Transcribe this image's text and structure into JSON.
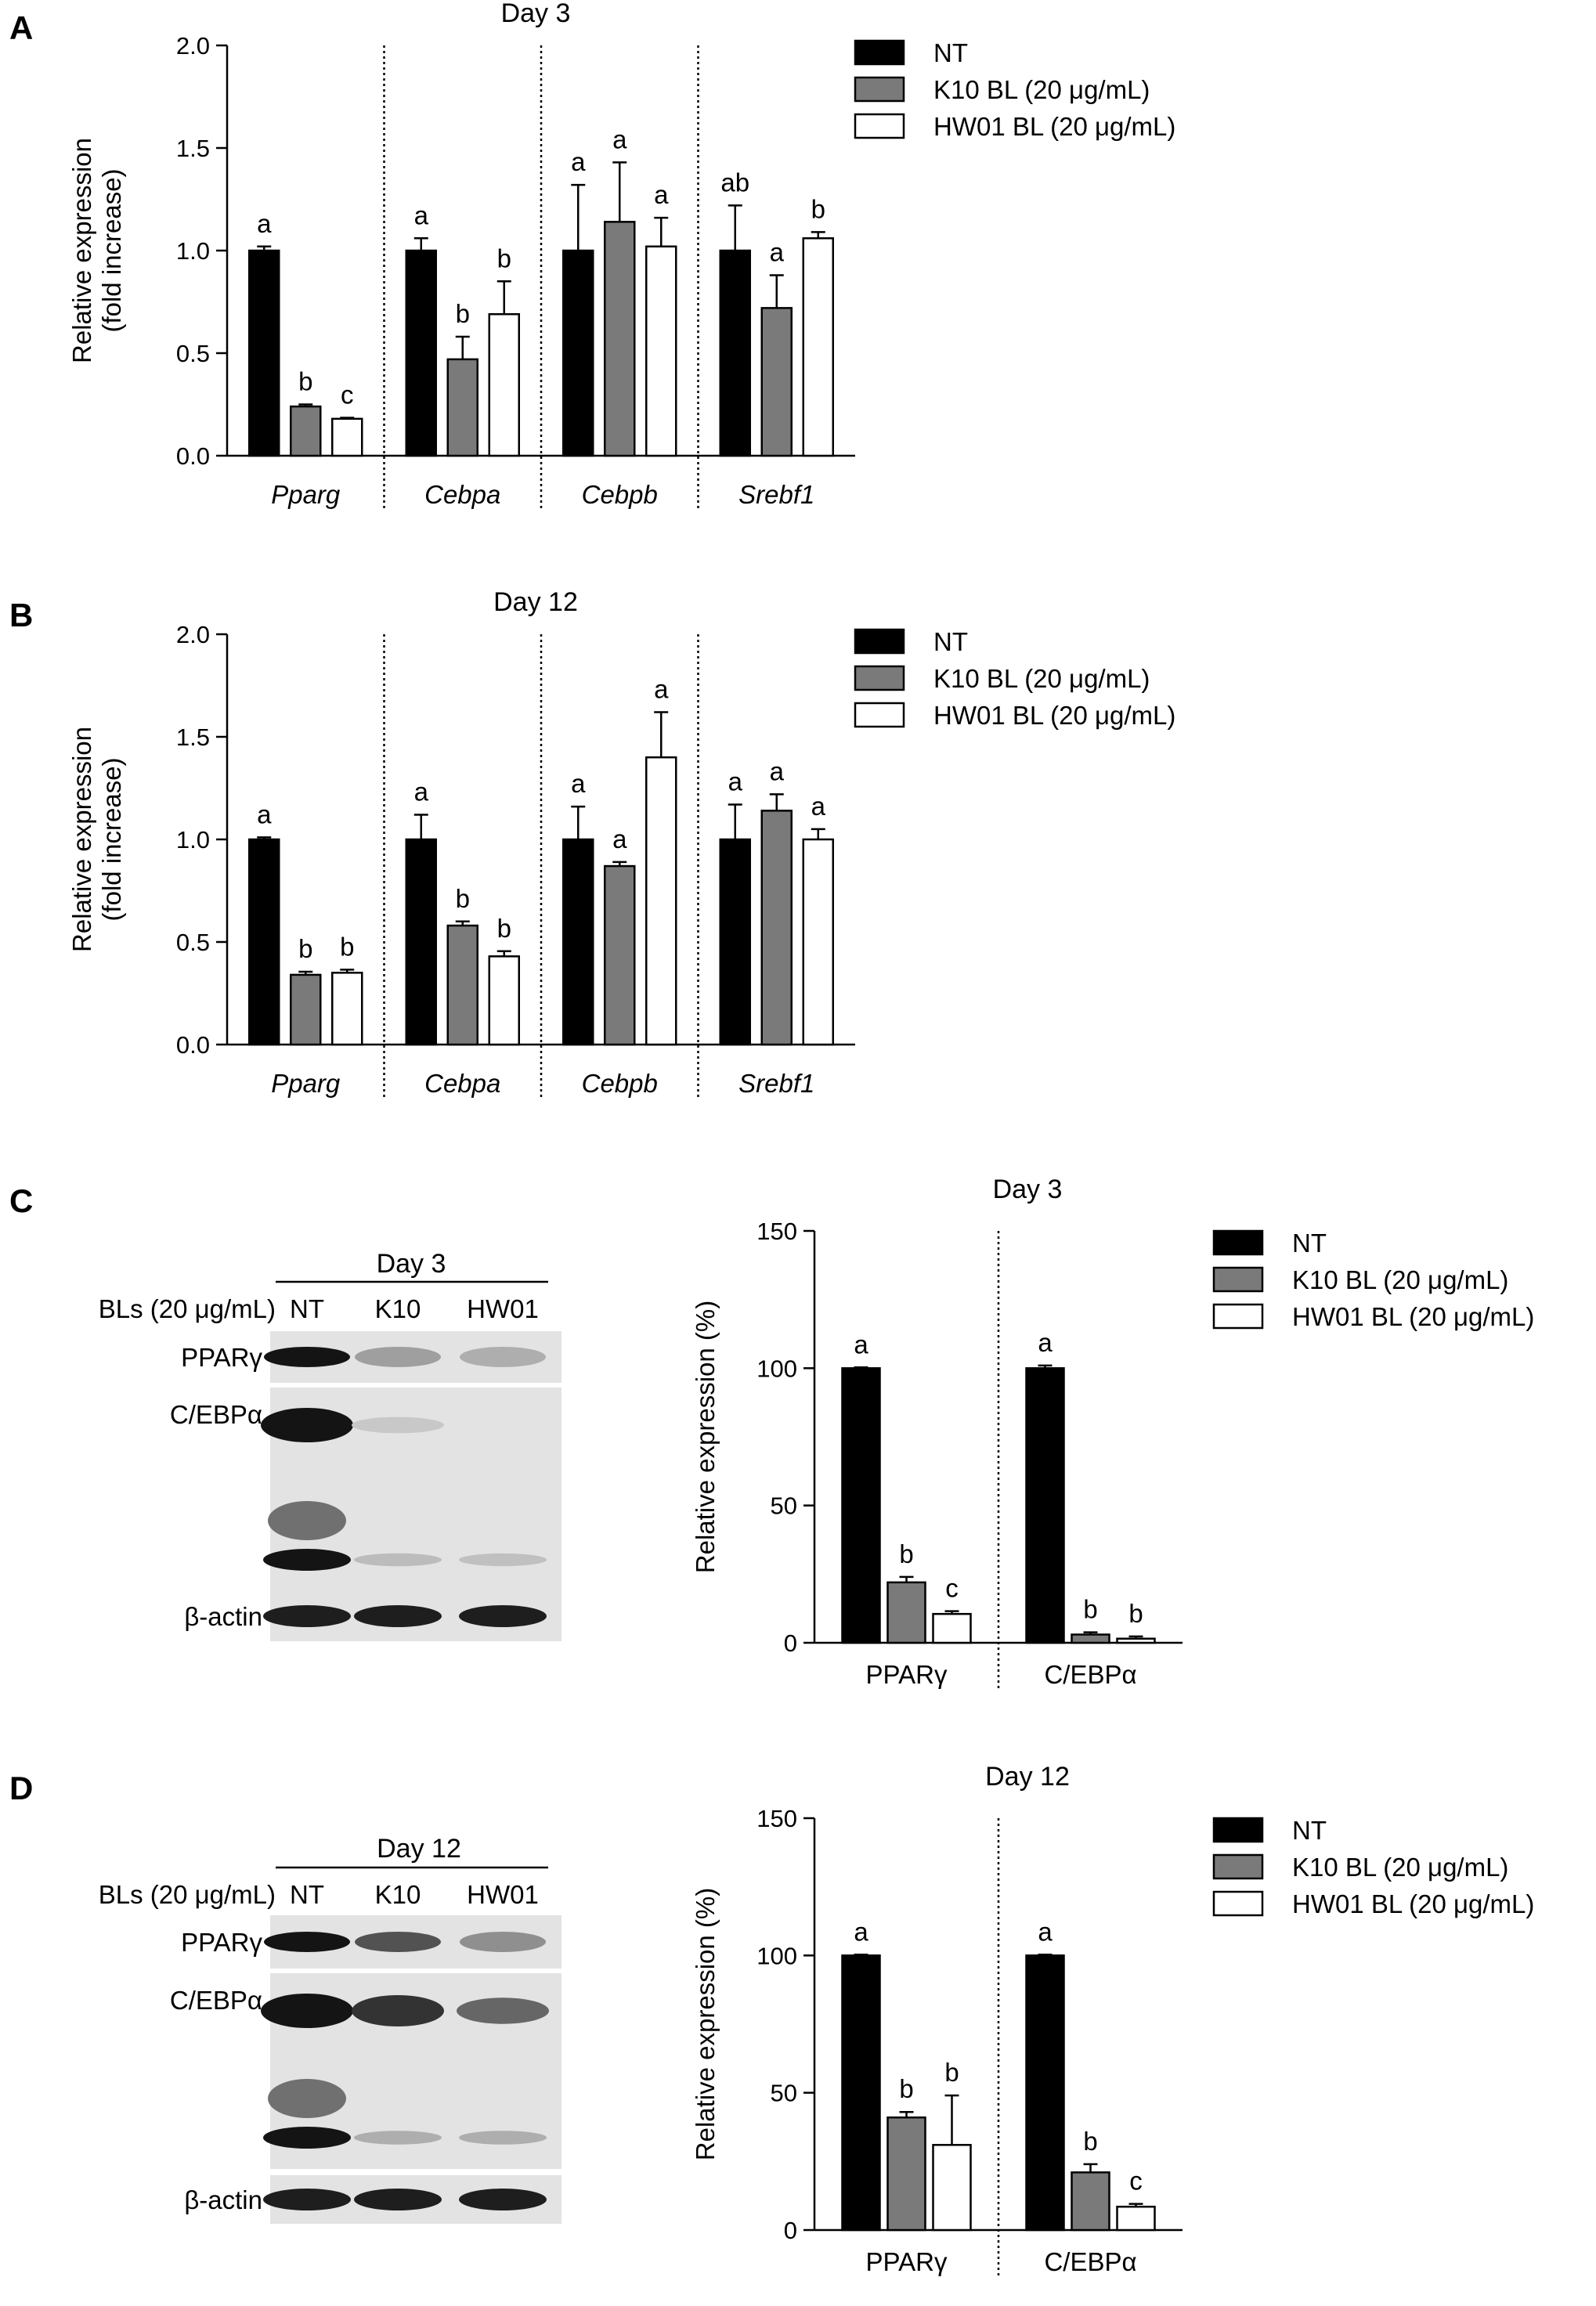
{
  "colors": {
    "NT": "#000000",
    "K10": "#7a7a7a",
    "HW01": "#ffffff"
  },
  "legend": [
    "NT",
    "K10 BL (20 μg/mL)",
    "HW01 BL (20 μg/mL)"
  ],
  "panel_labels": [
    "A",
    "B",
    "C",
    "D"
  ],
  "blots": [
    {
      "title": "Day 3",
      "row_header": "BLs (20 μg/mL)",
      "lanes": [
        "NT",
        "K10",
        "HW01"
      ],
      "rows": [
        "PPARγ",
        "C/EBPα",
        "β-actin"
      ],
      "intensity": {
        "PPARγ": [
          1.0,
          0.32,
          0.25
        ],
        "C/EBPα": [
          1.0,
          0.12,
          0.0
        ],
        "C/EBPα_lower": [
          1.0,
          0.18,
          0.16
        ],
        "β-actin": [
          0.95,
          0.95,
          0.95
        ]
      }
    },
    {
      "title": "Day 12",
      "row_header": "BLs (20 μg/mL)",
      "lanes": [
        "NT",
        "K10",
        "HW01"
      ],
      "rows": [
        "PPARγ",
        "C/EBPα",
        "β-actin"
      ],
      "intensity": {
        "PPARγ": [
          1.0,
          0.7,
          0.4
        ],
        "C/EBPα": [
          1.0,
          0.85,
          0.6
        ],
        "C/EBPα_lower": [
          1.0,
          0.25,
          0.25
        ],
        "β-actin": [
          0.95,
          0.95,
          0.95
        ]
      }
    }
  ],
  "chart_data": [
    {
      "panel": "A",
      "type": "bar",
      "title": "Day 3",
      "ylabel": [
        "Relative expression",
        "(fold increase)"
      ],
      "ylim": [
        0,
        2.0
      ],
      "yticks": [
        "0.0",
        "0.5",
        "1.0",
        "1.5",
        "2.0"
      ],
      "categories": [
        "Pparg",
        "Cebpa",
        "Cebpb",
        "Srebf1"
      ],
      "categories_italic": true,
      "series": [
        {
          "name": "NT",
          "values": [
            1.0,
            1.0,
            1.0,
            1.0
          ],
          "errors": [
            0.02,
            0.06,
            0.32,
            0.22
          ],
          "labels": [
            "a",
            "a",
            "a",
            "ab"
          ]
        },
        {
          "name": "K10 BL (20 μg/mL)",
          "values": [
            0.24,
            0.47,
            1.14,
            0.72
          ],
          "errors": [
            0.01,
            0.11,
            0.29,
            0.16
          ],
          "labels": [
            "b",
            "b",
            "a",
            "a"
          ]
        },
        {
          "name": "HW01 BL (20 μg/mL)",
          "values": [
            0.18,
            0.69,
            1.02,
            1.06
          ],
          "errors": [
            0.005,
            0.16,
            0.14,
            0.03
          ],
          "labels": [
            "c",
            "b",
            "a",
            "b"
          ]
        }
      ]
    },
    {
      "panel": "B",
      "type": "bar",
      "title": "Day 12",
      "ylabel": [
        "Relative expression",
        "(fold increase)"
      ],
      "ylim": [
        0,
        2.0
      ],
      "yticks": [
        "0.0",
        "0.5",
        "1.0",
        "1.5",
        "2.0"
      ],
      "categories": [
        "Pparg",
        "Cebpa",
        "Cebpb",
        "Srebf1"
      ],
      "categories_italic": true,
      "series": [
        {
          "name": "NT",
          "values": [
            1.0,
            1.0,
            1.0,
            1.0
          ],
          "errors": [
            0.01,
            0.12,
            0.16,
            0.17
          ],
          "labels": [
            "a",
            "a",
            "a",
            "a"
          ]
        },
        {
          "name": "K10 BL (20 μg/mL)",
          "values": [
            0.34,
            0.58,
            0.87,
            1.14
          ],
          "errors": [
            0.015,
            0.02,
            0.02,
            0.08
          ],
          "labels": [
            "b",
            "b",
            "a",
            "a"
          ]
        },
        {
          "name": "HW01 BL (20 μg/mL)",
          "values": [
            0.35,
            0.43,
            1.4,
            1.0
          ],
          "errors": [
            0.015,
            0.025,
            0.22,
            0.05
          ],
          "labels": [
            "b",
            "b",
            "a",
            "a"
          ]
        }
      ]
    },
    {
      "panel": "C",
      "type": "bar",
      "title": "Day 3",
      "ylabel": [
        "Relative expression (%)"
      ],
      "ylim": [
        0,
        150
      ],
      "yticks": [
        "0",
        "50",
        "100",
        "150"
      ],
      "categories": [
        "PPARγ",
        "C/EBPα"
      ],
      "categories_italic": false,
      "series": [
        {
          "name": "NT",
          "values": [
            100,
            100
          ],
          "errors": [
            0.3,
            1.0
          ],
          "labels": [
            "a",
            "a"
          ]
        },
        {
          "name": "K10 BL (20 μg/mL)",
          "values": [
            22,
            3
          ],
          "errors": [
            2,
            0.8
          ],
          "labels": [
            "b",
            "b"
          ]
        },
        {
          "name": "HW01 BL (20 μg/mL)",
          "values": [
            10.5,
            1.5
          ],
          "errors": [
            1,
            0.8
          ],
          "labels": [
            "c",
            "b"
          ]
        }
      ]
    },
    {
      "panel": "D",
      "type": "bar",
      "title": "Day 12",
      "ylabel": [
        "Relative expression (%)"
      ],
      "ylim": [
        0,
        150
      ],
      "yticks": [
        "0",
        "50",
        "100",
        "150"
      ],
      "categories": [
        "PPARγ",
        "C/EBPα"
      ],
      "categories_italic": false,
      "series": [
        {
          "name": "NT",
          "values": [
            100,
            100
          ],
          "errors": [
            0.3,
            0.3
          ],
          "labels": [
            "a",
            "a"
          ]
        },
        {
          "name": "K10 BL (20 μg/mL)",
          "values": [
            41,
            21
          ],
          "errors": [
            2,
            3
          ],
          "labels": [
            "b",
            "b"
          ]
        },
        {
          "name": "HW01 BL (20 μg/mL)",
          "values": [
            31,
            8.5
          ],
          "errors": [
            18,
            1
          ],
          "labels": [
            "b",
            "c"
          ]
        }
      ]
    }
  ]
}
